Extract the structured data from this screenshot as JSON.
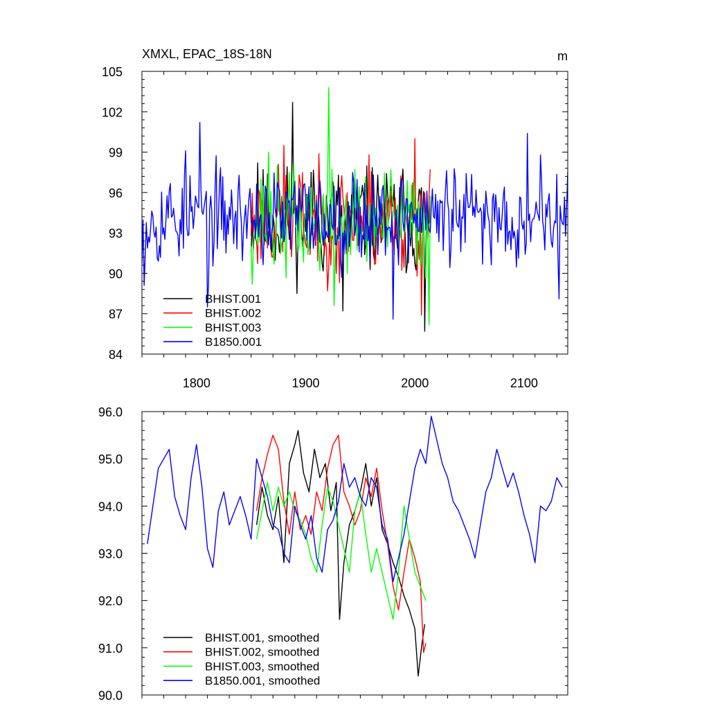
{
  "chart_data": [
    {
      "type": "line",
      "title": "XMXL, EPAC_18S-18N",
      "units": "m",
      "xlim": [
        1750,
        2140
      ],
      "ylim": [
        84,
        105
      ],
      "x_ticks": [
        1800,
        1900,
        2000,
        2100
      ],
      "y_ticks": [
        84,
        87,
        90,
        93,
        96,
        99,
        102,
        105
      ],
      "y_tick_labels": [
        "84",
        "87",
        "90",
        "93",
        "96",
        "99",
        "102",
        "105"
      ],
      "legend_position": "bottom-left",
      "series": [
        {
          "name": "BHIST.001",
          "color": "#000000",
          "x_start": 1850,
          "x_end": 2014,
          "mean": 94.0,
          "amp": 3.2,
          "seed": 11,
          "peaks": [
            [
              1888,
              102.7
            ],
            [
              1934,
              87.2
            ],
            [
              2009,
              85.7
            ],
            [
              1856,
              98.2
            ],
            [
              1905,
              97.5
            ]
          ]
        },
        {
          "name": "BHIST.002",
          "color": "#ff0000",
          "x_start": 1850,
          "x_end": 2014,
          "mean": 94.0,
          "amp": 3.2,
          "seed": 23,
          "peaks": [
            [
              1880,
              99.5
            ],
            [
              2000,
              100.0
            ],
            [
              2006,
              86.9
            ],
            [
              1931,
              89.3
            ],
            [
              1958,
              98.8
            ]
          ]
        },
        {
          "name": "BHIST.003",
          "color": "#00ff00",
          "x_start": 1850,
          "x_end": 2014,
          "mean": 93.8,
          "amp": 3.2,
          "seed": 37,
          "peaks": [
            [
              1921,
              103.8
            ],
            [
              1926,
              87.6
            ],
            [
              2013,
              86.2
            ],
            [
              1866,
              99.0
            ]
          ]
        },
        {
          "name": "B1850.001",
          "color": "#0000ff",
          "x_start": 1750,
          "x_end": 2140,
          "mean": 94.2,
          "amp": 2.8,
          "seed": 53,
          "peaks": [
            [
              1752,
              89.1
            ],
            [
              1790,
              99.1
            ],
            [
              1803,
              101.2
            ],
            [
              1810,
              87.5
            ],
            [
              1980,
              86.6
            ],
            [
              2103,
              100.4
            ],
            [
              2132,
              88.1
            ],
            [
              2115,
              98.8
            ]
          ]
        }
      ]
    },
    {
      "type": "line",
      "xlim": [
        1750,
        2140
      ],
      "ylim": [
        90.0,
        96.0
      ],
      "x_ticks": [
        1800,
        1900,
        2000,
        2100
      ],
      "y_ticks": [
        90.0,
        91.0,
        92.0,
        93.0,
        94.0,
        95.0,
        96.0
      ],
      "y_tick_labels": [
        "90.0",
        "91.0",
        "92.0",
        "93.0",
        "94.0",
        "95.0",
        "96.0"
      ],
      "legend_position": "bottom-left",
      "series": [
        {
          "name": "BHIST.001, smoothed",
          "color": "#000000",
          "x": [
            1855,
            1860,
            1865,
            1870,
            1875,
            1880,
            1885,
            1890,
            1893,
            1898,
            1903,
            1908,
            1913,
            1918,
            1923,
            1928,
            1931,
            1935,
            1940,
            1945,
            1950,
            1955,
            1960,
            1965,
            1970,
            1975,
            1980,
            1985,
            1990,
            1995,
            2000,
            2003,
            2006,
            2009
          ],
          "y": [
            93.6,
            94.4,
            93.8,
            93.5,
            94.2,
            92.8,
            94.9,
            95.3,
            95.6,
            94.7,
            94.3,
            95.2,
            94.6,
            94.9,
            93.9,
            94.5,
            91.6,
            92.8,
            93.6,
            93.9,
            94.3,
            94.9,
            94.0,
            94.6,
            93.5,
            93.2,
            92.8,
            92.5,
            92.1,
            91.8,
            91.4,
            90.4,
            91.0,
            91.5
          ]
        },
        {
          "name": "BHIST.002, smoothed",
          "color": "#ff0000",
          "x": [
            1855,
            1860,
            1865,
            1870,
            1875,
            1880,
            1885,
            1890,
            1895,
            1900,
            1905,
            1910,
            1915,
            1920,
            1925,
            1930,
            1935,
            1940,
            1945,
            1950,
            1955,
            1960,
            1965,
            1970,
            1975,
            1980,
            1985,
            1990,
            1995,
            2000,
            2005,
            2008,
            2010
          ],
          "y": [
            93.9,
            94.6,
            95.1,
            95.5,
            95.2,
            94.1,
            93.4,
            94.3,
            93.5,
            93.8,
            93.4,
            94.3,
            93.9,
            94.8,
            95.3,
            95.5,
            94.3,
            94.0,
            93.6,
            93.9,
            94.6,
            94.2,
            94.8,
            93.9,
            93.2,
            92.3,
            91.8,
            92.6,
            93.3,
            92.9,
            92.4,
            90.9,
            91.1
          ]
        },
        {
          "name": "BHIST.003, smoothed",
          "color": "#00ff00",
          "x": [
            1855,
            1860,
            1865,
            1870,
            1875,
            1880,
            1885,
            1890,
            1895,
            1900,
            1905,
            1910,
            1915,
            1920,
            1925,
            1930,
            1935,
            1940,
            1945,
            1950,
            1955,
            1960,
            1965,
            1970,
            1975,
            1980,
            1985,
            1990,
            1995,
            2000,
            2005,
            2010
          ],
          "y": [
            93.3,
            93.9,
            94.5,
            93.9,
            94.4,
            94.0,
            94.3,
            93.9,
            93.7,
            93.4,
            92.9,
            92.6,
            93.6,
            94.4,
            94.1,
            93.6,
            93.1,
            92.6,
            93.9,
            94.3,
            93.4,
            92.6,
            93.1,
            92.6,
            92.1,
            91.6,
            92.6,
            94.0,
            93.3,
            92.6,
            92.3,
            92.0
          ]
        },
        {
          "name": "B1850.001, smoothed",
          "color": "#0000ff",
          "x": [
            1755,
            1760,
            1765,
            1770,
            1775,
            1780,
            1785,
            1790,
            1795,
            1800,
            1805,
            1810,
            1815,
            1820,
            1825,
            1830,
            1835,
            1840,
            1845,
            1850,
            1855,
            1860,
            1865,
            1870,
            1875,
            1880,
            1885,
            1890,
            1895,
            1900,
            1905,
            1910,
            1915,
            1920,
            1925,
            1930,
            1935,
            1940,
            1945,
            1950,
            1955,
            1960,
            1965,
            1970,
            1975,
            1980,
            1985,
            1990,
            1995,
            2000,
            2005,
            2010,
            2015,
            2020,
            2025,
            2030,
            2035,
            2040,
            2045,
            2050,
            2055,
            2060,
            2065,
            2070,
            2075,
            2080,
            2085,
            2090,
            2095,
            2100,
            2105,
            2110,
            2115,
            2120,
            2125,
            2130,
            2135
          ],
          "y": [
            93.2,
            94.0,
            94.8,
            95.0,
            95.2,
            94.2,
            93.8,
            93.5,
            94.6,
            95.3,
            94.4,
            93.1,
            92.7,
            93.9,
            94.3,
            93.6,
            93.9,
            94.2,
            93.8,
            93.3,
            95.0,
            94.6,
            94.2,
            93.6,
            93.5,
            93.0,
            92.8,
            94.0,
            93.6,
            93.3,
            93.8,
            92.9,
            92.6,
            93.5,
            93.7,
            94.1,
            94.9,
            94.4,
            94.6,
            94.2,
            94.0,
            94.6,
            94.4,
            93.6,
            93.3,
            92.4,
            92.9,
            93.4,
            94.1,
            94.8,
            95.2,
            94.9,
            95.9,
            95.4,
            94.9,
            94.6,
            94.1,
            93.9,
            93.6,
            93.3,
            92.9,
            93.6,
            94.3,
            94.6,
            95.2,
            94.8,
            94.4,
            94.7,
            94.3,
            93.8,
            93.4,
            92.8,
            94.0,
            93.9,
            94.1,
            94.6,
            94.4
          ]
        }
      ]
    }
  ]
}
